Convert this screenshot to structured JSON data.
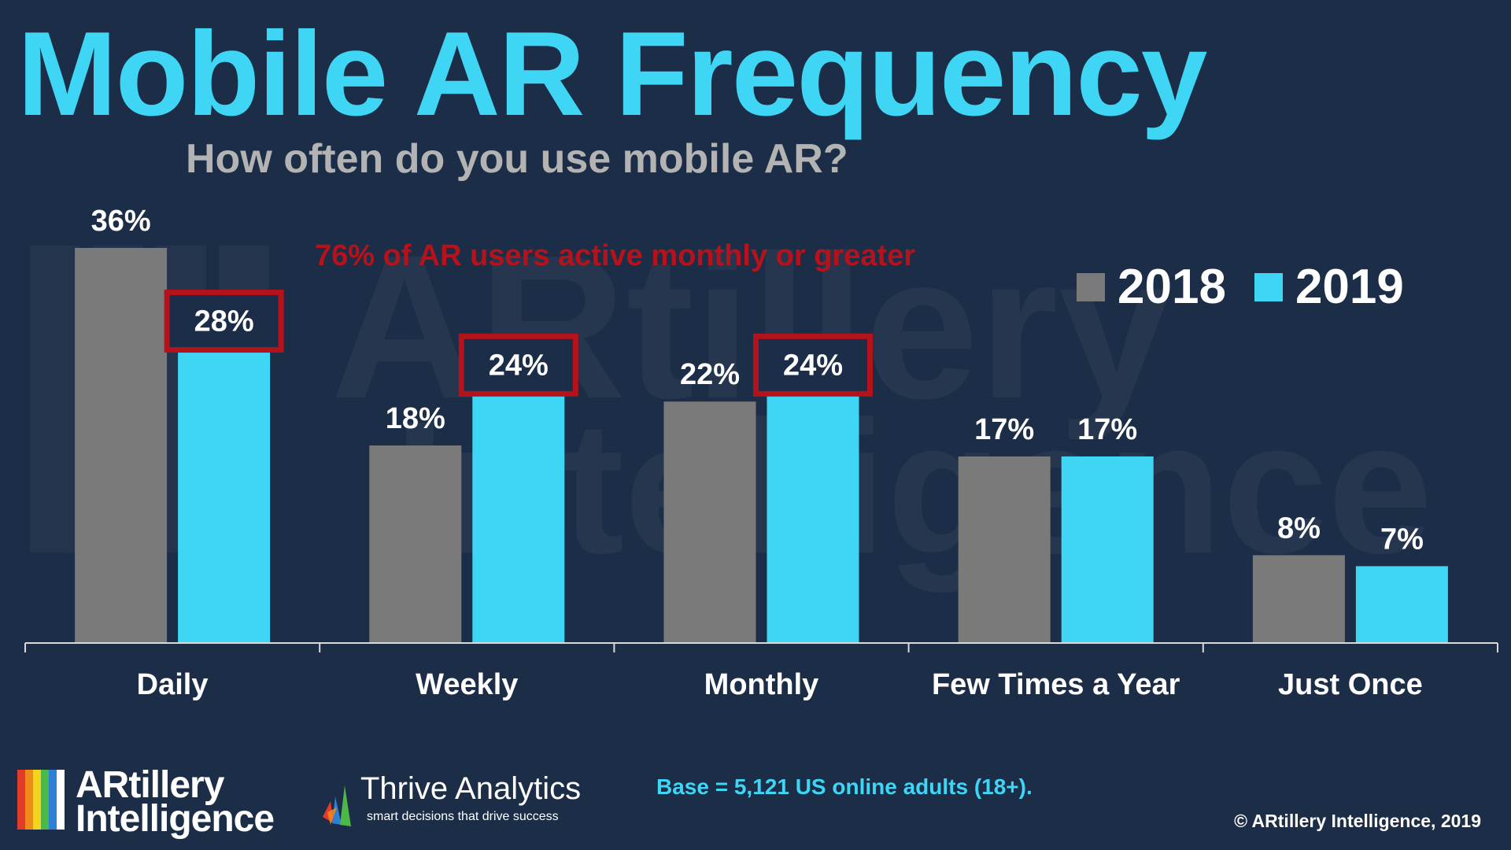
{
  "title": "Mobile AR Frequency",
  "subtitle": "How often do you use mobile AR?",
  "annotation": "76% of AR users active monthly or greater",
  "watermark": {
    "line1": "ARtillery",
    "line2": "Intelligence"
  },
  "colors": {
    "background": "#1c2d47",
    "series_2018": "#7a7a7a",
    "series_2019": "#3fd6f5",
    "highlight": "#b5121b",
    "title": "#3fd6f5"
  },
  "chart_data": {
    "type": "bar",
    "categories": [
      "Daily",
      "Weekly",
      "Monthly",
      "Few Times a Year",
      "Just Once"
    ],
    "series": [
      {
        "name": "2018",
        "values": [
          36,
          18,
          22,
          17,
          8
        ]
      },
      {
        "name": "2019",
        "values": [
          28,
          24,
          24,
          17,
          7
        ]
      }
    ],
    "value_suffix": "%",
    "highlighted": [
      {
        "series": "2019",
        "category": "Daily"
      },
      {
        "series": "2019",
        "category": "Weekly"
      },
      {
        "series": "2019",
        "category": "Monthly"
      }
    ],
    "ylim": [
      0,
      36
    ],
    "grid": false,
    "legend": "top-right"
  },
  "logos": {
    "artillery": {
      "line1": "ARtillery",
      "line2": "Intelligence"
    },
    "thrive": {
      "name": "Thrive Analytics",
      "tagline": "smart decisions that drive success"
    }
  },
  "footnote": "Base = 5,121 US online adults (18+).",
  "copyright": "© ARtillery Intelligence, 2019"
}
